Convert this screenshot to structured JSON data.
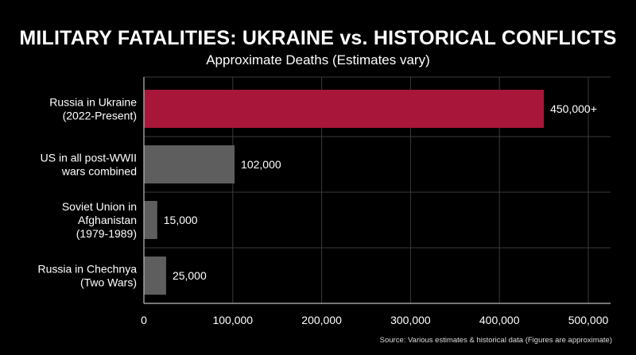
{
  "chart_data": {
    "type": "bar",
    "orientation": "horizontal",
    "title": "MILITARY FATALITIES: UKRAINE vs. HISTORICAL CONFLICTS",
    "subtitle": "Approximate Deaths (Estimates vary)",
    "categories": [
      [
        "Russia in Ukraine",
        "(2022-Present)"
      ],
      [
        "US in all post-WWII",
        "wars combined"
      ],
      [
        "Soviet Union in",
        "Afghanistan",
        "(1979-1989)"
      ],
      [
        "Russia in Chechnya",
        "(Two Wars)"
      ]
    ],
    "values": [
      450000,
      102000,
      15000,
      25000
    ],
    "value_labels": [
      "450,000+",
      "102,000",
      "15,000",
      "25,000"
    ],
    "bar_colors": [
      "#a8173a",
      "#5e5e5e",
      "#5e5e5e",
      "#5e5e5e"
    ],
    "x_ticks": [
      0,
      100000,
      200000,
      300000,
      400000,
      500000
    ],
    "x_tick_labels": [
      "0",
      "100,000",
      "200,000",
      "300,000",
      "400,000",
      "500,000"
    ],
    "xlim": [
      0,
      500000
    ],
    "grid": true,
    "source": "Source: Various estimates & historical data (Figures are approximate)"
  },
  "colors": {
    "background": "#000000",
    "text": "#ffffff",
    "grid": "#3a3a3a",
    "axis": "#bbbbbb",
    "accent": "#a8173a",
    "neutral_bar": "#5e5e5e"
  }
}
